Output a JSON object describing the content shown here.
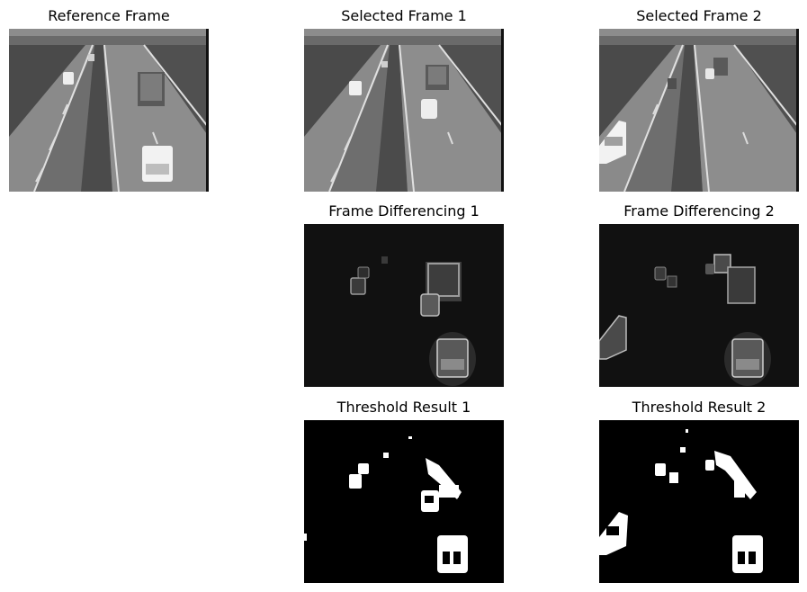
{
  "panels": {
    "reference": {
      "title": "Reference Frame"
    },
    "selected1": {
      "title": "Selected Frame 1"
    },
    "selected2": {
      "title": "Selected Frame 2"
    },
    "difference1": {
      "title": "Frame Differencing 1"
    },
    "difference2": {
      "title": "Frame Differencing 2"
    },
    "threshold1": {
      "title": "Threshold Result 1"
    },
    "threshold2": {
      "title": "Threshold Result 2"
    }
  },
  "colors": {
    "background": "#ffffff",
    "road": "#7a7a7a",
    "grass": "#5a5a5a",
    "dark": "#111111",
    "white": "#ffffff"
  }
}
